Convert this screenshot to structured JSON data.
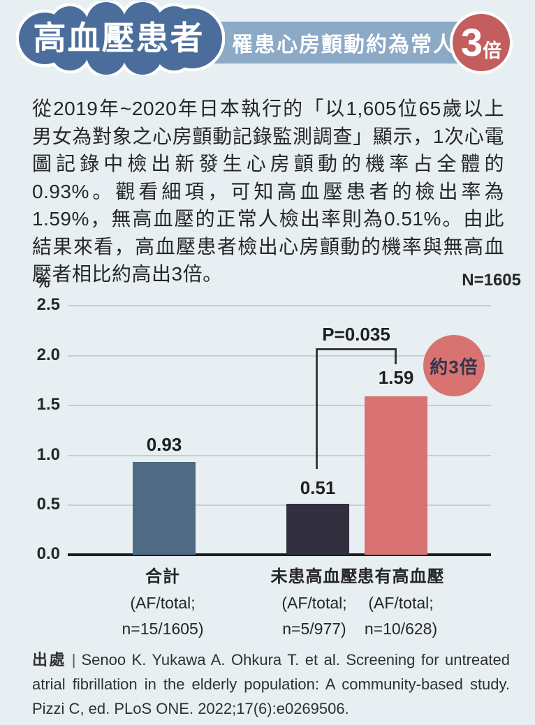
{
  "header": {
    "badge": "高血壓患者",
    "banner": "罹患心房顫動約為常人",
    "multiplier_number": "3",
    "multiplier_unit": "倍"
  },
  "intro": "從2019年~2020年日本執行的「以1,605位65歲以上男女為對象之心房顫動記錄監測調查」顯示，1次心電圖記錄中檢出新發生心房顫動的機率占全體的0.93%。觀看細項，可知高血壓患者的檢出率為1.59%，無高血壓的正常人檢出率則為0.51%。由此結果來看，高血壓患者檢出心房顫動的機率與無高血壓者相比約高出3倍。",
  "chart_data": {
    "type": "bar",
    "unit_label": "%",
    "sample_label": "N=1605",
    "categories": [
      "合計",
      "未患高血壓",
      "患有高血壓"
    ],
    "sub_labels": [
      [
        "(AF/total;",
        "n=15/1605)"
      ],
      [
        "(AF/total;",
        "n=5/977)"
      ],
      [
        "(AF/total;",
        "n=10/628)"
      ]
    ],
    "values": [
      0.93,
      0.51,
      1.59
    ],
    "value_labels": [
      "0.93",
      "0.51",
      "1.59"
    ],
    "bar_colors": [
      "#4e6b83",
      "#322f3e",
      "#d87372"
    ],
    "ylim": [
      0,
      2.5
    ],
    "yticks": [
      "2.5",
      "2.0",
      "1.5",
      "1.0",
      "0.5",
      "0.0"
    ],
    "grid": true,
    "legend_position": "none",
    "p_value_label": "P=0.035",
    "annotation": "約3倍"
  },
  "source": {
    "prefix": "出處",
    "divider": "|",
    "citation": "Senoo K. Yukawa A. Ohkura T. et al. Screening for untreated atrial fibrillation in the elderly population: A community-based study. Pizzi C, ed. PLoS ONE. 2022;17(6):e0269506."
  },
  "colors": {
    "background": "#e8eff2",
    "cloud_badge": "#4a6d9b",
    "banner": "#8ca9c6",
    "multiplier_circle": "#c25e5e",
    "bar_total": "#4e6b83",
    "bar_no_hypertension": "#322f3e",
    "bar_hypertension": "#d87372"
  }
}
